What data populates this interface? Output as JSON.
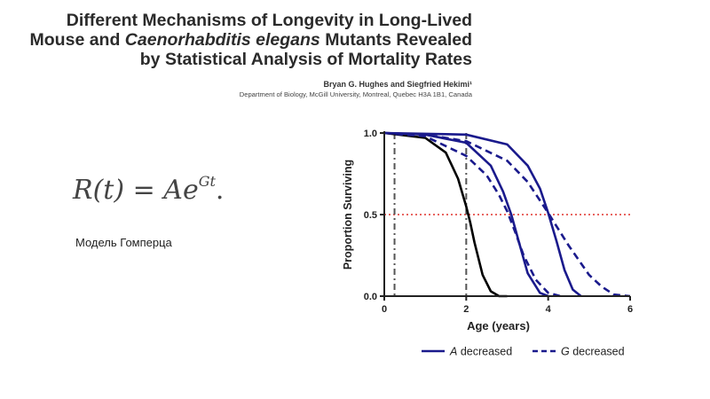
{
  "paper": {
    "title_line1": "Different Mechanisms of Longevity in Long-Lived",
    "title_line2_a": "Mouse and ",
    "title_line2_italic": "Caenorhabditis elegans",
    "title_line2_b": " Mutants Revealed",
    "title_line3": "by Statistical Analysis of Mortality Rates",
    "authors": "Bryan G. Hughes and Siegfried Hekimi¹",
    "affiliation": "Department of Biology, McGill University, Montreal, Quebec H3A 1B1, Canada"
  },
  "formula": {
    "lhs": "R(t) = A",
    "base": "e",
    "exponent": "Gt",
    "end": "."
  },
  "caption": "Модель Гомперца",
  "colors": {
    "baseline": "#000000",
    "series": "#1a1a8c",
    "threshold": "#e0302b",
    "axis": "#222222"
  },
  "chart_data": {
    "type": "line",
    "xlabel": "Age (years)",
    "ylabel": "Proportion Surviving",
    "xlim": [
      0,
      6
    ],
    "ylim": [
      0,
      1
    ],
    "x_ticks": [
      "0",
      "2",
      "4",
      "6"
    ],
    "y_ticks": [
      "0.0",
      "0.5",
      "1.0"
    ],
    "reference_lines": [
      {
        "axis": "y",
        "value": 0.5,
        "style": "dotted",
        "color": "#e0302b"
      },
      {
        "axis": "x",
        "value": 0.25,
        "style": "dash-dot",
        "color": "#555555"
      },
      {
        "axis": "x",
        "value": 2.0,
        "style": "dash-dot",
        "color": "#555555"
      }
    ],
    "legend": {
      "placement": "bottom",
      "items": [
        {
          "label": "A decreased",
          "style": "solid"
        },
        {
          "label": "G decreased",
          "style": "dashed"
        }
      ]
    },
    "series": [
      {
        "style": "solid",
        "color": "#000000",
        "x": [
          0,
          1.0,
          1.5,
          1.8,
          2.0,
          2.1,
          2.2,
          2.4,
          2.6,
          2.8,
          3.0
        ],
        "y": [
          1.0,
          0.97,
          0.88,
          0.72,
          0.55,
          0.45,
          0.33,
          0.13,
          0.03,
          0.0,
          0.0
        ]
      },
      {
        "style": "solid",
        "color": "#1a1a8c",
        "x": [
          0,
          1.0,
          2.0,
          2.6,
          2.9,
          3.1,
          3.3,
          3.5,
          3.8,
          4.0
        ],
        "y": [
          1.0,
          0.99,
          0.94,
          0.8,
          0.64,
          0.5,
          0.32,
          0.14,
          0.02,
          0.0
        ]
      },
      {
        "style": "solid",
        "color": "#1a1a8c",
        "x": [
          0,
          2.0,
          3.0,
          3.5,
          3.8,
          4.0,
          4.2,
          4.4,
          4.6,
          4.8
        ],
        "y": [
          1.0,
          0.99,
          0.93,
          0.8,
          0.66,
          0.51,
          0.34,
          0.16,
          0.04,
          0.0
        ]
      },
      {
        "style": "dashed",
        "color": "#1a1a8c",
        "x": [
          0,
          1.0,
          2.0,
          2.5,
          2.8,
          3.0,
          3.2,
          3.4,
          3.7,
          4.0,
          4.3
        ],
        "y": [
          1.0,
          0.98,
          0.86,
          0.74,
          0.62,
          0.52,
          0.39,
          0.25,
          0.1,
          0.02,
          0.0
        ]
      },
      {
        "style": "dashed",
        "color": "#1a1a8c",
        "x": [
          0,
          1.0,
          2.0,
          3.0,
          3.5,
          4.0,
          4.5,
          5.0,
          5.3,
          5.6,
          6.0
        ],
        "y": [
          1.0,
          0.99,
          0.95,
          0.83,
          0.7,
          0.51,
          0.31,
          0.13,
          0.06,
          0.01,
          0.0
        ]
      }
    ]
  }
}
